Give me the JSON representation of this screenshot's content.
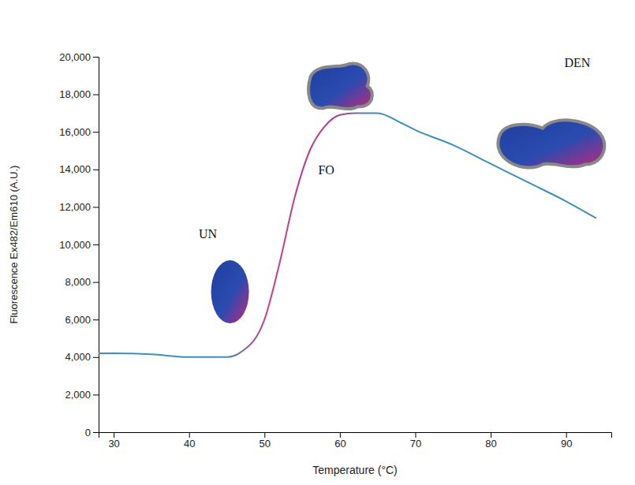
{
  "chart_data": {
    "type": "line",
    "x_label": "Temperature (°C)",
    "y_label": "Fluorescence Ex482/Em610 (A.U.)",
    "x": [
      28,
      30,
      35,
      40,
      45,
      47,
      50,
      52,
      54,
      56,
      58,
      60,
      62,
      65,
      68,
      70,
      75,
      80,
      85,
      90,
      94
    ],
    "values": [
      4200,
      4200,
      4150,
      4000,
      4000,
      4300,
      6000,
      9000,
      12500,
      15000,
      16300,
      16900,
      17000,
      17000,
      16500,
      16100,
      15300,
      14300,
      13300,
      12300,
      11400
    ],
    "color": "#3d8eb9",
    "xlim": [
      28,
      96
    ],
    "xticks": [
      30,
      40,
      50,
      60,
      70,
      80,
      90
    ],
    "ylim": [
      0,
      20000
    ],
    "yticks": [
      0,
      {
        "value": 2000,
        "label": "2,000"
      },
      {
        "value": 4000,
        "label": "4,000"
      },
      {
        "value": 6000,
        "label": "6,000"
      },
      {
        "value": 8000,
        "label": "8,000"
      },
      {
        "value": 10000,
        "label": "10,000"
      },
      {
        "value": 12000,
        "label": "12,000"
      },
      {
        "value": 14000,
        "label": "14,000"
      },
      {
        "value": 16000,
        "label": "16,000"
      },
      {
        "value": 18000,
        "label": "18,000"
      },
      {
        "value": 20000,
        "label": "20,000"
      }
    ],
    "grid": false,
    "annotations": [
      {
        "text": "UN",
        "x": 42.5,
        "y": 10500
      },
      {
        "text": "FO",
        "x": 58.2,
        "y": 13900
      },
      {
        "text": "DEN",
        "x": 91.5,
        "y": 19600
      }
    ]
  }
}
